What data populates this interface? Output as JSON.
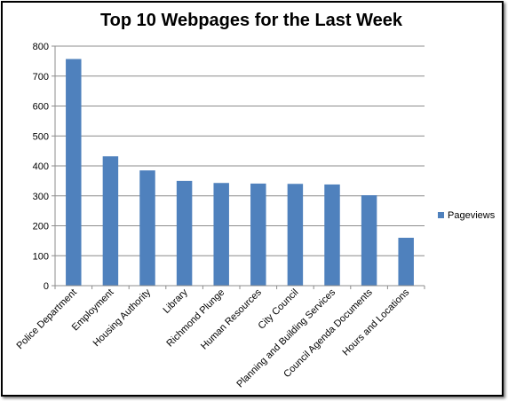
{
  "chart_data": {
    "type": "bar",
    "title": "Top 10 Webpages for the Last Week",
    "categories": [
      "Police Department",
      "Employment",
      "Housing Authority",
      "Library",
      "Richmond Plunge",
      "Human Resources",
      "City Council",
      "Planning and Building Services",
      "Council Agenda Documents",
      "Hours and Locations"
    ],
    "series": [
      {
        "name": "Pageviews",
        "values": [
          757,
          432,
          385,
          350,
          343,
          341,
          340,
          338,
          302,
          160
        ],
        "color": "#4f81bd"
      }
    ],
    "ylim": [
      0,
      800
    ],
    "yticks": [
      "0",
      "100",
      "200",
      "300",
      "400",
      "500",
      "600",
      "700",
      "800"
    ],
    "grid": true,
    "legend": "right"
  }
}
